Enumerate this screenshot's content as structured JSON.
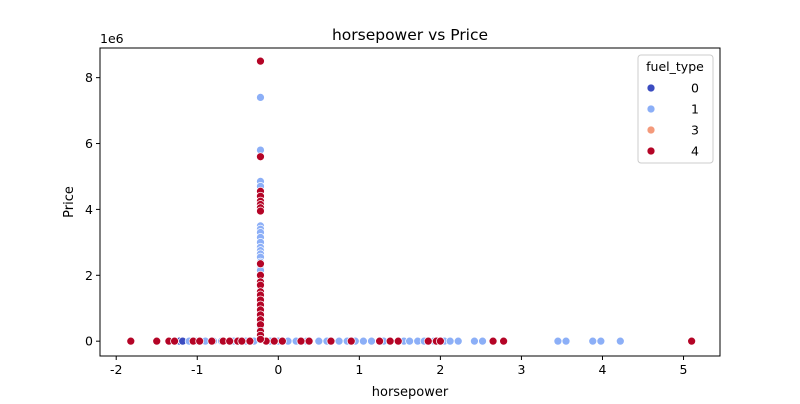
{
  "chart_data": {
    "type": "scatter",
    "title": "horsepower vs Price",
    "xlabel": "horsepower",
    "ylabel": "Price",
    "y_offset_label": "1e6",
    "xlim": [
      -2.2,
      5.45
    ],
    "ylim": [
      -450000,
      8900000
    ],
    "xticks": [
      -2,
      -1,
      0,
      1,
      2,
      3,
      4,
      5
    ],
    "yticks": [
      0,
      2000000,
      4000000,
      6000000,
      8000000
    ],
    "ytick_labels": [
      "0",
      "2",
      "4",
      "6",
      "8"
    ],
    "grid": false,
    "legend": {
      "title": "fuel_type",
      "position": "top-right"
    },
    "series": [
      {
        "name": "0",
        "color": "#3b4cc0",
        "points": [
          [
            -1.22,
            0
          ],
          [
            -1.18,
            0
          ]
        ]
      },
      {
        "name": "1",
        "color": "#8caff7",
        "points": [
          [
            -1.1,
            0
          ],
          [
            -1.02,
            0
          ],
          [
            -0.9,
            0
          ],
          [
            -0.8,
            0
          ],
          [
            -0.7,
            0
          ],
          [
            -0.55,
            0
          ],
          [
            -0.4,
            0
          ],
          [
            -0.3,
            0
          ],
          [
            -0.1,
            0
          ],
          [
            0.0,
            0
          ],
          [
            0.12,
            0
          ],
          [
            0.22,
            0
          ],
          [
            0.35,
            0
          ],
          [
            0.5,
            0
          ],
          [
            0.6,
            0
          ],
          [
            0.75,
            0
          ],
          [
            0.85,
            0
          ],
          [
            0.95,
            0
          ],
          [
            1.05,
            0
          ],
          [
            1.15,
            0
          ],
          [
            1.3,
            0
          ],
          [
            1.55,
            0
          ],
          [
            1.62,
            0
          ],
          [
            1.72,
            0
          ],
          [
            1.8,
            0
          ],
          [
            1.92,
            0
          ],
          [
            2.05,
            0
          ],
          [
            2.12,
            0
          ],
          [
            2.22,
            0
          ],
          [
            2.42,
            0
          ],
          [
            2.52,
            0
          ],
          [
            3.45,
            0
          ],
          [
            3.55,
            0
          ],
          [
            3.88,
            0
          ],
          [
            3.98,
            0
          ],
          [
            4.22,
            0
          ],
          [
            -0.22,
            7400000
          ],
          [
            -0.22,
            5800000
          ],
          [
            -0.22,
            4850000
          ],
          [
            -0.22,
            4700000
          ],
          [
            -0.22,
            4500000
          ],
          [
            -0.22,
            3500000
          ],
          [
            -0.22,
            3400000
          ],
          [
            -0.22,
            3300000
          ],
          [
            -0.22,
            3150000
          ],
          [
            -0.22,
            3000000
          ],
          [
            -0.22,
            2850000
          ],
          [
            -0.22,
            2750000
          ],
          [
            -0.22,
            2650000
          ],
          [
            -0.22,
            2550000
          ],
          [
            -0.22,
            2400000
          ],
          [
            -0.22,
            2250000
          ],
          [
            -0.22,
            2150000
          ],
          [
            -0.22,
            1950000
          ],
          [
            -0.22,
            1650000
          ],
          [
            -0.22,
            1350000
          ],
          [
            -0.22,
            1200000
          ],
          [
            -0.22,
            1050000
          ],
          [
            -0.22,
            850000
          ],
          [
            -0.22,
            750000
          ],
          [
            -0.22,
            600000
          ],
          [
            -0.22,
            400000
          ],
          [
            -0.22,
            250000
          ],
          [
            -0.22,
            120000
          ]
        ]
      },
      {
        "name": "3",
        "color": "#f49a7b",
        "points": []
      },
      {
        "name": "4",
        "color": "#b40426",
        "points": [
          [
            -1.82,
            0
          ],
          [
            -1.5,
            0
          ],
          [
            -1.35,
            0
          ],
          [
            -1.28,
            0
          ],
          [
            -1.05,
            0
          ],
          [
            -0.97,
            0
          ],
          [
            -0.82,
            0
          ],
          [
            -0.68,
            0
          ],
          [
            -0.6,
            0
          ],
          [
            -0.5,
            0
          ],
          [
            -0.45,
            0
          ],
          [
            -0.35,
            0
          ],
          [
            -0.15,
            0
          ],
          [
            -0.05,
            0
          ],
          [
            0.05,
            0
          ],
          [
            0.28,
            0
          ],
          [
            0.38,
            0
          ],
          [
            0.65,
            0
          ],
          [
            0.9,
            0
          ],
          [
            1.25,
            0
          ],
          [
            1.38,
            0
          ],
          [
            1.48,
            0
          ],
          [
            1.85,
            0
          ],
          [
            1.95,
            0
          ],
          [
            2.0,
            0
          ],
          [
            2.65,
            0
          ],
          [
            2.78,
            0
          ],
          [
            5.1,
            0
          ],
          [
            -0.22,
            8500000
          ],
          [
            -0.22,
            5600000
          ],
          [
            -0.22,
            4550000
          ],
          [
            -0.22,
            4400000
          ],
          [
            -0.22,
            4250000
          ],
          [
            -0.22,
            4150000
          ],
          [
            -0.22,
            4050000
          ],
          [
            -0.22,
            3950000
          ],
          [
            -0.22,
            2350000
          ],
          [
            -0.22,
            2000000
          ],
          [
            -0.22,
            1800000
          ],
          [
            -0.22,
            1700000
          ],
          [
            -0.22,
            1500000
          ],
          [
            -0.22,
            1400000
          ],
          [
            -0.22,
            1250000
          ],
          [
            -0.22,
            1100000
          ],
          [
            -0.22,
            950000
          ],
          [
            -0.22,
            800000
          ],
          [
            -0.22,
            650000
          ],
          [
            -0.22,
            500000
          ],
          [
            -0.22,
            300000
          ],
          [
            -0.22,
            180000
          ],
          [
            -0.22,
            60000
          ]
        ]
      }
    ]
  }
}
